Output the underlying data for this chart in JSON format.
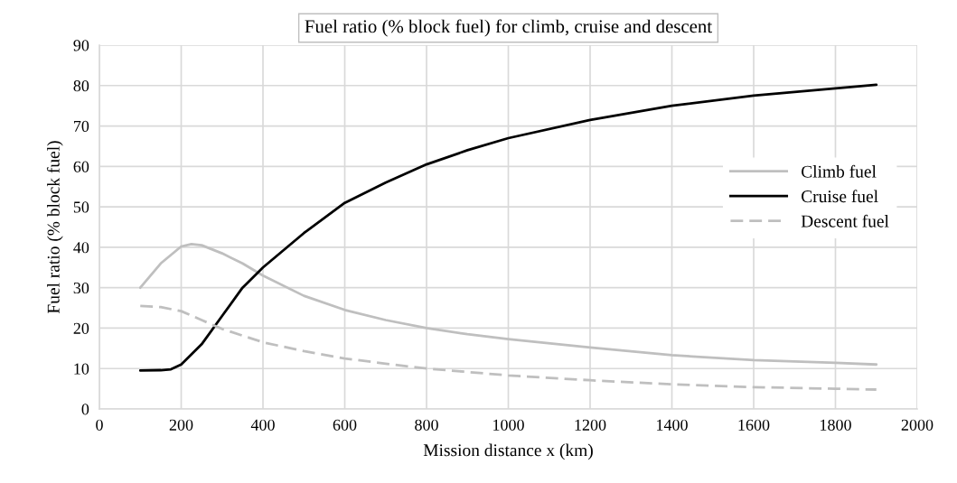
{
  "chart_data": {
    "type": "line",
    "title": "Fuel ratio (% block fuel) for climb, cruise and descent",
    "xlabel": "Mission distance x (km)",
    "ylabel": "Fuel ratio (% block fuel)",
    "xlim": [
      0,
      2000
    ],
    "xticks": [
      0,
      200,
      400,
      600,
      800,
      1000,
      1200,
      1400,
      1600,
      1800,
      2000
    ],
    "ylim": [
      0,
      90
    ],
    "yticks": [
      0,
      10,
      20,
      30,
      40,
      50,
      60,
      70,
      80,
      90
    ],
    "grid": true,
    "legend": "right",
    "marker": "none",
    "series": [
      {
        "name": "Climb fuel",
        "color": "#bfbfbf",
        "line_style": "solid",
        "x": [
          100,
          150,
          200,
          225,
          250,
          300,
          350,
          400,
          500,
          600,
          700,
          800,
          900,
          1000,
          1200,
          1400,
          1600,
          1800,
          1900
        ],
        "values": [
          30,
          36,
          40.2,
          40.8,
          40.5,
          38.5,
          36,
          33,
          28,
          24.5,
          22,
          20,
          18.5,
          17.3,
          15.2,
          13.3,
          12.1,
          11.4,
          11
        ]
      },
      {
        "name": "Cruise fuel",
        "color": "#000000",
        "line_style": "solid",
        "x": [
          100,
          150,
          175,
          200,
          250,
          300,
          350,
          400,
          500,
          600,
          700,
          800,
          900,
          1000,
          1200,
          1400,
          1600,
          1800,
          1900
        ],
        "values": [
          9.5,
          9.6,
          9.8,
          11,
          16,
          23,
          30,
          35,
          43.5,
          51,
          56,
          60.5,
          64,
          67,
          71.5,
          75,
          77.5,
          79.3,
          80.2
        ]
      },
      {
        "name": "Descent fuel",
        "color": "#bfbfbf",
        "line_style": "dashed",
        "x": [
          100,
          150,
          200,
          250,
          300,
          400,
          500,
          600,
          700,
          800,
          1000,
          1200,
          1400,
          1600,
          1800,
          1900
        ],
        "values": [
          25.5,
          25.2,
          24.2,
          22,
          19.8,
          16.5,
          14.3,
          12.5,
          11.2,
          10,
          8.3,
          7.1,
          6.1,
          5.4,
          5,
          4.8
        ]
      }
    ]
  }
}
